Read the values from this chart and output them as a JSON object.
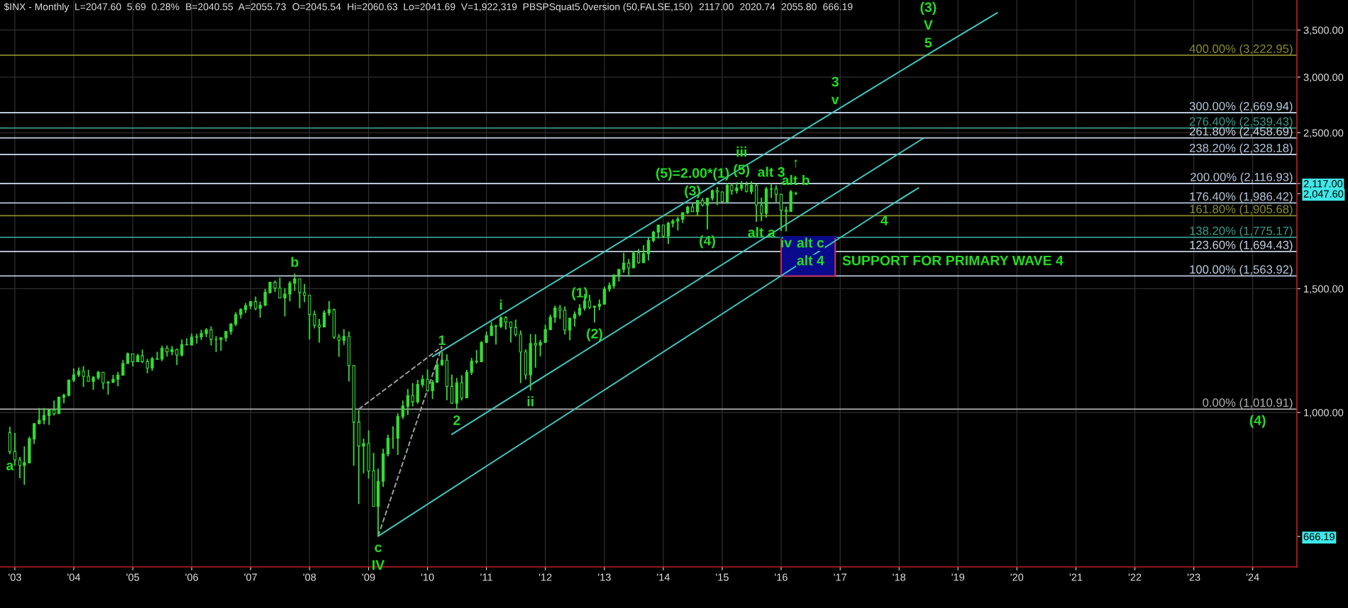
{
  "chart_data": {
    "type": "candlestick",
    "log": "y",
    "grid": true,
    "color": "#33dd33",
    "xlim": [
      "2002-10",
      "2024-10"
    ],
    "ylim": [
      603,
      3862
    ],
    "xticks": [
      {
        "value": "2003",
        "label": "'03"
      },
      {
        "value": "2004",
        "label": "'04"
      },
      {
        "value": "2005",
        "label": "'05"
      },
      {
        "value": "2006",
        "label": "'06"
      },
      {
        "value": "2007",
        "label": "'07"
      },
      {
        "value": "2008",
        "label": "'08"
      },
      {
        "value": "2009",
        "label": "'09"
      },
      {
        "value": "2010",
        "label": "'10"
      },
      {
        "value": "2011",
        "label": "'11"
      },
      {
        "value": "2012",
        "label": "'12"
      },
      {
        "value": "2013",
        "label": "'13"
      },
      {
        "value": "2014",
        "label": "'14"
      },
      {
        "value": "2015",
        "label": "'15"
      },
      {
        "value": "2016",
        "label": "'16"
      },
      {
        "value": "2017",
        "label": "'17"
      },
      {
        "value": "2018",
        "label": "'18"
      },
      {
        "value": "2019",
        "label": "'19"
      },
      {
        "value": "2020",
        "label": "'20"
      },
      {
        "value": "2021",
        "label": "'21"
      },
      {
        "value": "2022",
        "label": "'22"
      },
      {
        "value": "2023",
        "label": "'23"
      },
      {
        "value": "2024",
        "label": "'24"
      }
    ],
    "yticks": [
      {
        "value": 1000,
        "label": "1,000.00"
      },
      {
        "value": 1500,
        "label": "1,500.00"
      },
      {
        "value": 2500,
        "label": "2,500.00"
      },
      {
        "value": 3000,
        "label": "3,000.00"
      },
      {
        "value": 3500,
        "label": "3,500.00"
      },
      {
        "value": 2117,
        "label": "2,117.00"
      },
      {
        "value": 2047.6,
        "label": "2,047.60"
      },
      {
        "value": 666.19,
        "label": "666.19"
      }
    ],
    "x": [
      "2002-12",
      "2003-01",
      "2003-02",
      "2003-03",
      "2003-04",
      "2003-05",
      "2003-06",
      "2003-07",
      "2003-08",
      "2003-09",
      "2003-10",
      "2003-11",
      "2003-12",
      "2004-01",
      "2004-02",
      "2004-03",
      "2004-04",
      "2004-05",
      "2004-06",
      "2004-07",
      "2004-08",
      "2004-09",
      "2004-10",
      "2004-11",
      "2004-12",
      "2005-01",
      "2005-02",
      "2005-03",
      "2005-04",
      "2005-05",
      "2005-06",
      "2005-07",
      "2005-08",
      "2005-09",
      "2005-10",
      "2005-11",
      "2005-12",
      "2006-01",
      "2006-02",
      "2006-03",
      "2006-04",
      "2006-05",
      "2006-06",
      "2006-07",
      "2006-08",
      "2006-09",
      "2006-10",
      "2006-11",
      "2006-12",
      "2007-01",
      "2007-02",
      "2007-03",
      "2007-04",
      "2007-05",
      "2007-06",
      "2007-07",
      "2007-08",
      "2007-09",
      "2007-10",
      "2007-11",
      "2007-12",
      "2008-01",
      "2008-02",
      "2008-03",
      "2008-04",
      "2008-05",
      "2008-06",
      "2008-07",
      "2008-08",
      "2008-09",
      "2008-10",
      "2008-11",
      "2008-12",
      "2009-01",
      "2009-02",
      "2009-03",
      "2009-04",
      "2009-05",
      "2009-06",
      "2009-07",
      "2009-08",
      "2009-09",
      "2009-10",
      "2009-11",
      "2009-12",
      "2010-01",
      "2010-02",
      "2010-03",
      "2010-04",
      "2010-05",
      "2010-06",
      "2010-07",
      "2010-08",
      "2010-09",
      "2010-10",
      "2010-11",
      "2010-12",
      "2011-01",
      "2011-02",
      "2011-03",
      "2011-04",
      "2011-05",
      "2011-06",
      "2011-07",
      "2011-08",
      "2011-09",
      "2011-10",
      "2011-11",
      "2011-12",
      "2012-01",
      "2012-02",
      "2012-03",
      "2012-04",
      "2012-05",
      "2012-06",
      "2012-07",
      "2012-08",
      "2012-09",
      "2012-10",
      "2012-11",
      "2012-12",
      "2013-01",
      "2013-02",
      "2013-03",
      "2013-04",
      "2013-05",
      "2013-06",
      "2013-07",
      "2013-08",
      "2013-09",
      "2013-10",
      "2013-11",
      "2013-12",
      "2014-01",
      "2014-02",
      "2014-03",
      "2014-04",
      "2014-05",
      "2014-06",
      "2014-07",
      "2014-08",
      "2014-09",
      "2014-10",
      "2014-11",
      "2014-12",
      "2015-01",
      "2015-02",
      "2015-03",
      "2015-04",
      "2015-05",
      "2015-06",
      "2015-07",
      "2015-08",
      "2015-09",
      "2015-10",
      "2015-11",
      "2015-12",
      "2016-01",
      "2016-02",
      "2016-03",
      "2016-04"
    ],
    "ohlc": [
      [
        936,
        954,
        872,
        880
      ],
      [
        880,
        935,
        840,
        856
      ],
      [
        856,
        864,
        806,
        841
      ],
      [
        841,
        895,
        789,
        848
      ],
      [
        848,
        924,
        847,
        917
      ],
      [
        917,
        965,
        902,
        964
      ],
      [
        964,
        1015,
        963,
        975
      ],
      [
        975,
        1015,
        962,
        990
      ],
      [
        990,
        1011,
        960,
        1008
      ],
      [
        1008,
        1040,
        990,
        996
      ],
      [
        996,
        1054,
        996,
        1051
      ],
      [
        1051,
        1063,
        1031,
        1058
      ],
      [
        1058,
        1112,
        1054,
        1112
      ],
      [
        1112,
        1155,
        1105,
        1131
      ],
      [
        1131,
        1159,
        1124,
        1145
      ],
      [
        1145,
        1164,
        1087,
        1126
      ],
      [
        1126,
        1150,
        1107,
        1107
      ],
      [
        1107,
        1127,
        1077,
        1121
      ],
      [
        1121,
        1146,
        1113,
        1141
      ],
      [
        1141,
        1141,
        1079,
        1102
      ],
      [
        1102,
        1109,
        1060,
        1104
      ],
      [
        1104,
        1131,
        1101,
        1115
      ],
      [
        1115,
        1142,
        1090,
        1130
      ],
      [
        1130,
        1188,
        1128,
        1174
      ],
      [
        1174,
        1217,
        1173,
        1212
      ],
      [
        1212,
        1212,
        1163,
        1181
      ],
      [
        1181,
        1212,
        1180,
        1204
      ],
      [
        1204,
        1229,
        1176,
        1181
      ],
      [
        1181,
        1192,
        1137,
        1157
      ],
      [
        1157,
        1200,
        1146,
        1192
      ],
      [
        1192,
        1220,
        1188,
        1191
      ],
      [
        1191,
        1245,
        1183,
        1234
      ],
      [
        1234,
        1245,
        1201,
        1220
      ],
      [
        1220,
        1243,
        1206,
        1229
      ],
      [
        1229,
        1233,
        1168,
        1207
      ],
      [
        1207,
        1270,
        1201,
        1249
      ],
      [
        1249,
        1275,
        1246,
        1248
      ],
      [
        1248,
        1295,
        1245,
        1280
      ],
      [
        1280,
        1294,
        1253,
        1281
      ],
      [
        1281,
        1311,
        1268,
        1295
      ],
      [
        1295,
        1318,
        1280,
        1311
      ],
      [
        1311,
        1326,
        1245,
        1270
      ],
      [
        1270,
        1284,
        1219,
        1270
      ],
      [
        1270,
        1280,
        1224,
        1277
      ],
      [
        1277,
        1305,
        1261,
        1304
      ],
      [
        1304,
        1340,
        1290,
        1336
      ],
      [
        1336,
        1389,
        1327,
        1378
      ],
      [
        1378,
        1407,
        1360,
        1401
      ],
      [
        1401,
        1431,
        1385,
        1418
      ],
      [
        1418,
        1441,
        1403,
        1438
      ],
      [
        1438,
        1462,
        1398,
        1407
      ],
      [
        1407,
        1438,
        1364,
        1421
      ],
      [
        1421,
        1499,
        1416,
        1482
      ],
      [
        1482,
        1535,
        1476,
        1531
      ],
      [
        1531,
        1541,
        1484,
        1503
      ],
      [
        1503,
        1556,
        1453,
        1455
      ],
      [
        1455,
        1503,
        1370,
        1474
      ],
      [
        1474,
        1538,
        1439,
        1527
      ],
      [
        1527,
        1576,
        1489,
        1549
      ],
      [
        1549,
        1549,
        1407,
        1481
      ],
      [
        1481,
        1523,
        1435,
        1468
      ],
      [
        1468,
        1471,
        1270,
        1379
      ],
      [
        1379,
        1396,
        1317,
        1331
      ],
      [
        1331,
        1359,
        1257,
        1323
      ],
      [
        1323,
        1397,
        1323,
        1386
      ],
      [
        1386,
        1440,
        1373,
        1400
      ],
      [
        1400,
        1405,
        1272,
        1280
      ],
      [
        1280,
        1293,
        1200,
        1267
      ],
      [
        1267,
        1314,
        1248,
        1283
      ],
      [
        1283,
        1304,
        1107,
        1166
      ],
      [
        1166,
        1167,
        840,
        969
      ],
      [
        969,
        1008,
        741,
        896
      ],
      [
        896,
        918,
        819,
        903
      ],
      [
        903,
        943,
        805,
        826
      ],
      [
        826,
        876,
        735,
        735
      ],
      [
        735,
        832,
        667,
        798
      ],
      [
        798,
        888,
        784,
        873
      ],
      [
        873,
        930,
        866,
        919
      ],
      [
        919,
        956,
        888,
        919
      ],
      [
        919,
        997,
        870,
        987
      ],
      [
        987,
        1040,
        979,
        1021
      ],
      [
        1021,
        1080,
        992,
        1057
      ],
      [
        1057,
        1101,
        1020,
        1036
      ],
      [
        1036,
        1113,
        1029,
        1096
      ],
      [
        1096,
        1130,
        1086,
        1115
      ],
      [
        1115,
        1151,
        1071,
        1074
      ],
      [
        1074,
        1113,
        1045,
        1104
      ],
      [
        1104,
        1181,
        1102,
        1169
      ],
      [
        1169,
        1220,
        1165,
        1187
      ],
      [
        1187,
        1210,
        1041,
        1089
      ],
      [
        1089,
        1132,
        1029,
        1031
      ],
      [
        1031,
        1120,
        1011,
        1102
      ],
      [
        1102,
        1130,
        1040,
        1049
      ],
      [
        1049,
        1150,
        1048,
        1141
      ],
      [
        1141,
        1196,
        1131,
        1183
      ],
      [
        1183,
        1227,
        1173,
        1181
      ],
      [
        1181,
        1263,
        1181,
        1258
      ],
      [
        1258,
        1303,
        1257,
        1286
      ],
      [
        1286,
        1345,
        1286,
        1327
      ],
      [
        1327,
        1333,
        1249,
        1326
      ],
      [
        1326,
        1370,
        1318,
        1364
      ],
      [
        1364,
        1371,
        1312,
        1345
      ],
      [
        1345,
        1346,
        1258,
        1321
      ],
      [
        1321,
        1356,
        1283,
        1292
      ],
      [
        1292,
        1308,
        1101,
        1219
      ],
      [
        1219,
        1230,
        1114,
        1131
      ],
      [
        1131,
        1293,
        1075,
        1253
      ],
      [
        1253,
        1292,
        1158,
        1247
      ],
      [
        1247,
        1269,
        1202,
        1258
      ],
      [
        1258,
        1333,
        1258,
        1312
      ],
      [
        1312,
        1378,
        1311,
        1366
      ],
      [
        1366,
        1419,
        1341,
        1408
      ],
      [
        1408,
        1422,
        1358,
        1398
      ],
      [
        1398,
        1415,
        1291,
        1310
      ],
      [
        1310,
        1363,
        1267,
        1362
      ],
      [
        1362,
        1392,
        1325,
        1379
      ],
      [
        1379,
        1426,
        1371,
        1407
      ],
      [
        1407,
        1475,
        1396,
        1441
      ],
      [
        1441,
        1470,
        1403,
        1412
      ],
      [
        1412,
        1419,
        1343,
        1416
      ],
      [
        1416,
        1448,
        1398,
        1426
      ],
      [
        1426,
        1510,
        1426,
        1498
      ],
      [
        1498,
        1531,
        1485,
        1515
      ],
      [
        1515,
        1570,
        1501,
        1569
      ],
      [
        1569,
        1598,
        1536,
        1598
      ],
      [
        1598,
        1687,
        1581,
        1631
      ],
      [
        1631,
        1654,
        1560,
        1606
      ],
      [
        1606,
        1698,
        1605,
        1686
      ],
      [
        1686,
        1709,
        1628,
        1633
      ],
      [
        1633,
        1730,
        1633,
        1682
      ],
      [
        1682,
        1776,
        1646,
        1757
      ],
      [
        1757,
        1813,
        1747,
        1806
      ],
      [
        1806,
        1849,
        1768,
        1848
      ],
      [
        1848,
        1850,
        1770,
        1783
      ],
      [
        1783,
        1868,
        1737,
        1859
      ],
      [
        1859,
        1884,
        1834,
        1872
      ],
      [
        1872,
        1897,
        1815,
        1884
      ],
      [
        1884,
        1925,
        1860,
        1924
      ],
      [
        1924,
        1968,
        1915,
        1960
      ],
      [
        1960,
        1991,
        1930,
        1931
      ],
      [
        1931,
        2005,
        1905,
        2003
      ],
      [
        2003,
        2019,
        1964,
        1972
      ],
      [
        1972,
        2019,
        1821,
        2018
      ],
      [
        2018,
        2075,
        2001,
        2068
      ],
      [
        2068,
        2094,
        1972,
        2059
      ],
      [
        2059,
        2064,
        1988,
        1995
      ],
      [
        1995,
        2120,
        1981,
        2105
      ],
      [
        2105,
        2118,
        2040,
        2068
      ],
      [
        2068,
        2126,
        2048,
        2086
      ],
      [
        2086,
        2134,
        2067,
        2107
      ],
      [
        2107,
        2130,
        2056,
        2063
      ],
      [
        2063,
        2133,
        2045,
        2104
      ],
      [
        2104,
        2113,
        1867,
        1972
      ],
      [
        1972,
        2021,
        1872,
        1920
      ],
      [
        1920,
        2094,
        1893,
        2079
      ],
      [
        2079,
        2117,
        2019,
        2080
      ],
      [
        2080,
        2105,
        1993,
        2044
      ],
      [
        2044,
        2044,
        1812,
        1940
      ],
      [
        1940,
        1963,
        1810,
        1932
      ],
      [
        1932,
        2073,
        1932,
        2060
      ],
      [
        2045.54,
        2060.63,
        2041.69,
        2047.6
      ]
    ],
    "series": [
      {
        "type": "line",
        "color": "#0a0a8c",
        "x": [
          "2016-01",
          "2016-07",
          "2016-12"
        ],
        "values": [
          1775.17,
          1775.17,
          1775.17
        ],
        "lower": [
          1563.92,
          1563.92,
          1563.92
        ],
        "upper": [
          1775.17,
          1775.17,
          1775.17
        ]
      },
      {
        "type": "line",
        "color": "#40c8c0",
        "line_style": "solid",
        "x": [
          "2010-02",
          "2016-12",
          "2018-07",
          "2019-09"
        ],
        "values": [
          1201,
          2685,
          3234,
          3703
        ]
      },
      {
        "type": "line",
        "color": "#40c8c0",
        "line_style": "solid",
        "x": [
          "2010-06",
          "2018-06"
        ],
        "values": [
          931,
          2456
        ]
      },
      {
        "type": "line",
        "color": "#40c8c0",
        "line_style": "solid",
        "x": [
          "2009-03",
          "2017-10",
          "2018-05"
        ],
        "values": [
          667,
          1946,
          2087
        ]
      },
      {
        "type": "line",
        "color": "#a0a0a0",
        "line_style": "dashed",
        "x": [
          "2008-11",
          "2010-04"
        ],
        "values": [
          1011,
          1241
        ]
      },
      {
        "type": "line",
        "color": "#a0a0a0",
        "line_style": "dashed",
        "x": [
          "2009-03",
          "2010-04"
        ],
        "values": [
          667,
          1241
        ]
      }
    ],
    "ref_lines": [
      {
        "axis": "y",
        "value": 3222.95,
        "label": "400.00% (3,222.95)",
        "color": "#8c8c30"
      },
      {
        "axis": "y",
        "value": 2669.94,
        "label": "300.00% (2,669.94)",
        "color": "#b8c8dc"
      },
      {
        "axis": "y",
        "value": 2539.43,
        "label": "276.40% (2,539.43)",
        "color": "#3a9a8a"
      },
      {
        "axis": "y",
        "value": 2458.69,
        "label": "261.80% (2,458.69)",
        "color": "#c8d4e4"
      },
      {
        "axis": "y",
        "value": 2328.18,
        "label": "238.20% (2,328.18)",
        "color": "#b8c8dc"
      },
      {
        "axis": "y",
        "value": 2116.93,
        "label": "200.00% (2,116.93)",
        "color": "#b8c8dc"
      },
      {
        "axis": "y",
        "value": 1986.42,
        "label": "176.40% (1,986.42)",
        "color": "#b8c8dc"
      },
      {
        "axis": "y",
        "value": 1905.68,
        "label": "161.80% (1,905.68)",
        "color": "#8c8c30"
      },
      {
        "axis": "y",
        "value": 1775.17,
        "label": "138.20% (1,775.17)",
        "color": "#3a9a8a"
      },
      {
        "axis": "y",
        "value": 1694.43,
        "label": "123.60% (1,694.43)",
        "color": "#c8d4e4"
      },
      {
        "axis": "y",
        "value": 1563.92,
        "label": "100.00% (1,563.92)",
        "color": "#b8c8dc"
      },
      {
        "axis": "y",
        "value": 1010.91,
        "label": "0.00% (1,010.91)",
        "color": "#b0b0b0"
      }
    ],
    "annotations": [
      "$INX - Monthly  L=2047.60  5.69  0.28%",
      "B=2040.55  A=2055.73",
      "O=2045.54",
      "Hi=2060.63  Lo=2041.69  V=1,922,319  PBSPSquat5.0version (50,FALSE,150)",
      "2117.00",
      "2020.74",
      "2055.80",
      "666.19",
      {
        "text": "a",
        "x": "2002-12",
        "y": 872
      },
      {
        "text": "b",
        "x": "2007-10",
        "y": 1576
      },
      {
        "text": "c",
        "x": "2009-03",
        "y": 667
      },
      {
        "text": "IV",
        "x": "2009-03",
        "y": 667
      },
      {
        "text": "1",
        "x": "2010-04",
        "y": 1220
      },
      {
        "text": "2",
        "x": "2010-07",
        "y": 1011
      },
      {
        "text": "i",
        "x": "2011-04",
        "y": 1370
      },
      {
        "text": "ii",
        "x": "2011-10",
        "y": 1075
      },
      {
        "text": "(1)",
        "x": "2012-08",
        "y": 1426
      },
      {
        "text": "(2)",
        "x": "2012-11",
        "y": 1343
      },
      {
        "text": "(3)",
        "x": "2014-07",
        "y": 1991
      },
      {
        "text": "(5)=2.00*(1)",
        "x": "2014-07",
        "y": 1991
      },
      {
        "text": "(4)",
        "x": "2014-10",
        "y": 1821
      },
      {
        "text": "(5)",
        "x": "2015-05",
        "y": 2134
      },
      {
        "text": "iii",
        "x": "2015-05",
        "y": 2134
      },
      {
        "text": "alt 3",
        "x": "2015-11",
        "y": 2117
      },
      {
        "text": "alt b",
        "x": "2016-04",
        "y": 2060.63
      },
      {
        "text": "↑",
        "x": "2016-04",
        "y": 2060.63
      },
      {
        "text": "alt a",
        "x": "2015-09",
        "y": 1872
      },
      {
        "text": "iv",
        "x": "2016-02",
        "y": 1810
      },
      {
        "text": "alt 4",
        "x": "2016-07",
        "y": 1563.92
      },
      {
        "text": "alt c",
        "x": "2016-07",
        "y": 1563.92
      },
      {
        "text": "SUPPORT FOR PRIMARY WAVE 4",
        "x": "2016-12",
        "y": 1563.92
      },
      {
        "text": "4",
        "x": "2017-10",
        "y": 1946
      },
      {
        "text": "v",
        "x": "2016-12",
        "y": 2685
      },
      {
        "text": "3",
        "x": "2016-12",
        "y": 2685
      },
      {
        "text": "5",
        "x": "2018-07",
        "y": 3234
      },
      {
        "text": "V",
        "x": "2018-07",
        "y": 3234
      },
      {
        "text": "(3)",
        "x": "2018-07",
        "y": 3234
      },
      {
        "text": "(4)",
        "x": "2024-02",
        "y": 1010.91
      }
    ]
  }
}
